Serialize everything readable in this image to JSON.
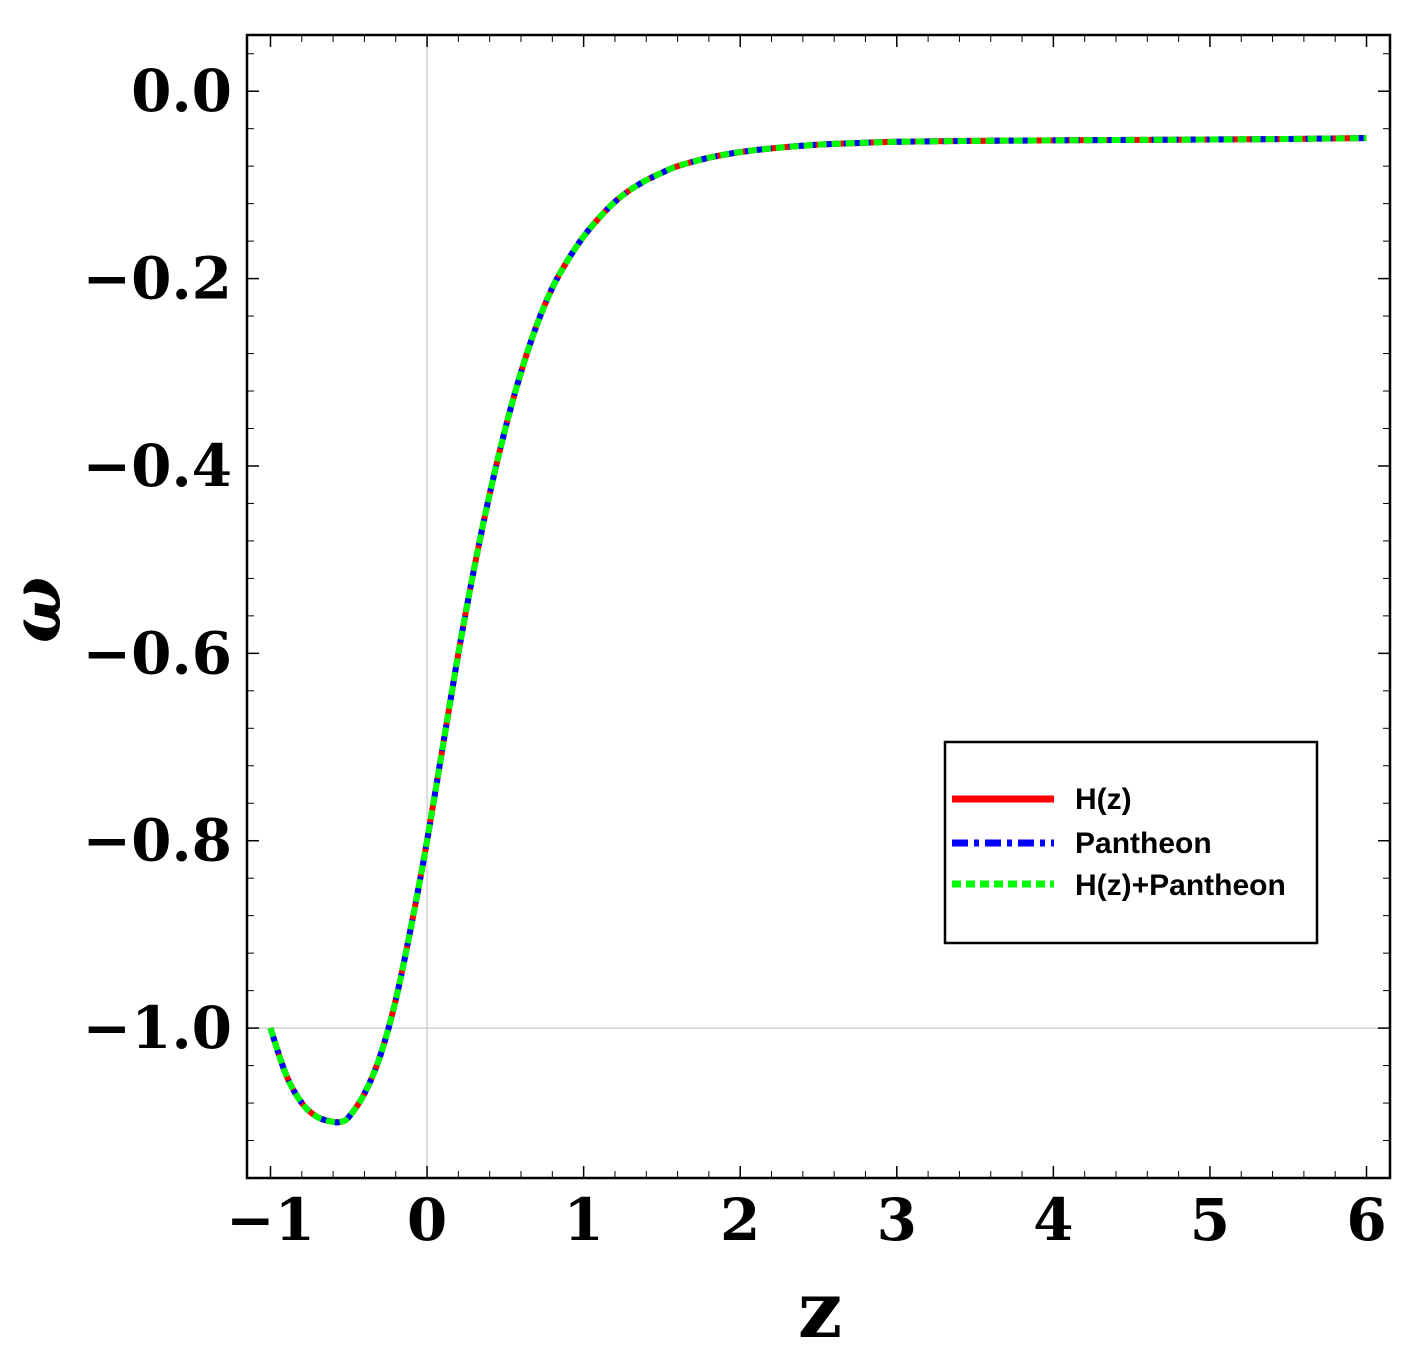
{
  "chart_data": {
    "type": "line",
    "xlabel": "z",
    "ylabel": "ω",
    "xlim": [
      -1.15,
      6.15
    ],
    "ylim": [
      -1.16,
      0.06
    ],
    "xticks": [
      -1,
      0,
      1,
      2,
      3,
      4,
      5,
      6
    ],
    "xtick_labels": [
      "−1",
      "0",
      "1",
      "2",
      "3",
      "4",
      "5",
      "6"
    ],
    "yticks": [
      0.0,
      -0.2,
      -0.4,
      -0.6,
      -0.8,
      -1.0
    ],
    "ytick_labels": [
      "0.0",
      "−0.2",
      "−0.4",
      "−0.6",
      "−0.8",
      "−1.0"
    ],
    "reference_lines": {
      "x": 0,
      "y": -1.0
    },
    "grid": false,
    "legend_position": "right, lower-middle",
    "x": [
      -1.0,
      -0.9,
      -0.8,
      -0.7,
      -0.6,
      -0.55,
      -0.5,
      -0.4,
      -0.3,
      -0.2,
      -0.1,
      0.0,
      0.1,
      0.2,
      0.3,
      0.4,
      0.5,
      0.6,
      0.7,
      0.8,
      0.9,
      1.0,
      1.1,
      1.2,
      1.3,
      1.4,
      1.5,
      1.6,
      1.8,
      2.0,
      2.2,
      2.5,
      2.8,
      3.0,
      3.5,
      4.0,
      4.5,
      5.0,
      5.5,
      6.0
    ],
    "series": [
      {
        "name": "H(z)",
        "color": "#ff0000",
        "style": "solid",
        "values": [
          -1.0,
          -1.05,
          -1.08,
          -1.095,
          -1.1,
          -1.1,
          -1.095,
          -1.07,
          -1.03,
          -0.97,
          -0.89,
          -0.8,
          -0.7,
          -0.6,
          -0.51,
          -0.43,
          -0.36,
          -0.3,
          -0.25,
          -0.21,
          -0.18,
          -0.155,
          -0.135,
          -0.118,
          -0.105,
          -0.095,
          -0.087,
          -0.08,
          -0.071,
          -0.065,
          -0.061,
          -0.057,
          -0.055,
          -0.054,
          -0.053,
          -0.0525,
          -0.052,
          -0.0515,
          -0.051,
          -0.05
        ]
      },
      {
        "name": "Pantheon",
        "color": "#0000ff",
        "style": "dashdot",
        "values": [
          -1.0,
          -1.05,
          -1.08,
          -1.095,
          -1.1,
          -1.1,
          -1.095,
          -1.07,
          -1.03,
          -0.97,
          -0.89,
          -0.8,
          -0.7,
          -0.6,
          -0.51,
          -0.43,
          -0.36,
          -0.3,
          -0.25,
          -0.21,
          -0.18,
          -0.155,
          -0.135,
          -0.118,
          -0.105,
          -0.095,
          -0.087,
          -0.08,
          -0.071,
          -0.065,
          -0.061,
          -0.057,
          -0.055,
          -0.054,
          -0.053,
          -0.0525,
          -0.052,
          -0.0515,
          -0.051,
          -0.05
        ]
      },
      {
        "name": "H(z)+Pantheon",
        "color": "#00ff00",
        "style": "dotted",
        "values": [
          -1.0,
          -1.05,
          -1.08,
          -1.095,
          -1.1,
          -1.1,
          -1.095,
          -1.07,
          -1.03,
          -0.97,
          -0.89,
          -0.8,
          -0.7,
          -0.6,
          -0.51,
          -0.43,
          -0.36,
          -0.3,
          -0.25,
          -0.21,
          -0.18,
          -0.155,
          -0.135,
          -0.118,
          -0.105,
          -0.095,
          -0.087,
          -0.08,
          -0.071,
          -0.065,
          -0.061,
          -0.057,
          -0.055,
          -0.054,
          -0.053,
          -0.0525,
          -0.052,
          -0.0515,
          -0.051,
          -0.05
        ]
      }
    ]
  }
}
